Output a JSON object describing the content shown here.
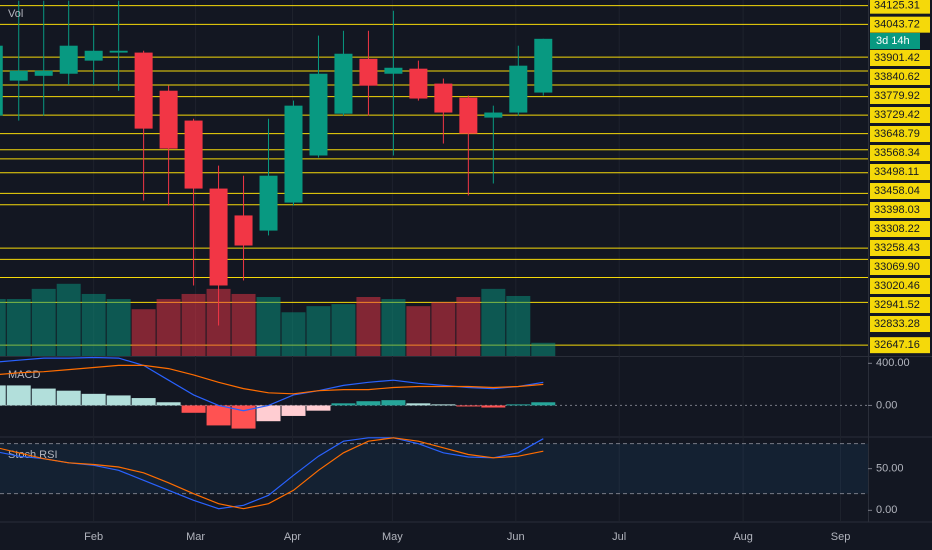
{
  "chart_data": [
    {
      "type": "candlestick",
      "x": [
        0,
        1,
        2,
        3,
        4,
        5,
        6,
        7,
        8,
        9,
        10,
        11,
        12,
        13,
        14,
        15,
        16,
        17,
        18,
        19,
        20,
        21,
        22
      ],
      "open": [
        33647,
        33799,
        33820,
        33829,
        33886,
        33921,
        33921,
        33755,
        33625,
        33329,
        33212,
        33146,
        33268,
        33473,
        33655,
        33894,
        33829,
        33851,
        33786,
        33725,
        33638,
        33660,
        33747
      ],
      "high": [
        33995,
        34147,
        34147,
        34147,
        34038,
        34147,
        33929,
        33777,
        33633,
        33429,
        33385,
        33633,
        33712,
        33995,
        34016,
        34016,
        34103,
        33886,
        33808,
        33734,
        33690,
        33951,
        33981
      ],
      "low": [
        33620,
        33625,
        33647,
        33780,
        33780,
        33755,
        33277,
        33255,
        32907,
        32733,
        32929,
        33125,
        33255,
        33464,
        33647,
        33647,
        33473,
        33712,
        33525,
        33299,
        33351,
        33647,
        33734
      ],
      "close": [
        33951,
        33842,
        33842,
        33951,
        33929,
        33929,
        33590,
        33503,
        33329,
        32907,
        33081,
        33385,
        33690,
        33829,
        33916,
        33777,
        33855,
        33721,
        33660,
        33568,
        33660,
        33864,
        33981
      ],
      "up_color": "#089981",
      "down_color": "#f23645",
      "xlim": [
        0.25,
        35
      ],
      "xticks": [
        {
          "value": 4,
          "label": "Feb"
        },
        {
          "value": 8.08,
          "label": "Mar"
        },
        {
          "value": 11.96,
          "label": "Apr"
        },
        {
          "value": 15.96,
          "label": "May"
        },
        {
          "value": 20.9,
          "label": "Jun"
        },
        {
          "value": 25.04,
          "label": "Jul"
        },
        {
          "value": 30,
          "label": "Aug"
        },
        {
          "value": 33.9,
          "label": "Sep"
        }
      ],
      "ylim": [
        32600,
        34150
      ],
      "levels": [
        34125.31,
        34043.72,
        33901.42,
        33840.62,
        33779.92,
        33729.42,
        33648.79,
        33568.34,
        33498.11,
        33458.04,
        33398.03,
        33308.22,
        33258.43,
        {
          "value": 33069.9,
          "label": "33069.90"
        },
        33020.46,
        32941.52,
        32833.28,
        32647.16
      ],
      "level_color": "#f5d90a",
      "countdown": "3d 14h"
    },
    {
      "type": "bar",
      "title": "Vol",
      "values": [
        56,
        56,
        66,
        71,
        61,
        56,
        46,
        56,
        61,
        66,
        61,
        58,
        43,
        49,
        51,
        58,
        56,
        49,
        53,
        58,
        66,
        59,
        13
      ],
      "ylim": [
        0,
        350
      ],
      "up_color": "rgba(8,153,129,0.5)",
      "down_color": "rgba(242,54,69,0.5)"
    },
    {
      "type": "macd",
      "title": "MACD",
      "histogram": {
        "values": [
          190,
          190,
          160,
          140,
          110,
          95,
          70,
          30,
          -70,
          -190,
          -220,
          -150,
          -100,
          -50,
          20,
          40,
          50,
          20,
          10,
          -10,
          -20,
          10,
          30
        ],
        "colors": [
          "#b2dfdb",
          "#b2dfdb",
          "#b2dfdb",
          "#b2dfdb",
          "#b2dfdb",
          "#b2dfdb",
          "#b2dfdb",
          "#b2dfdb",
          "#ff5252",
          "#ff5252",
          "#ff5252",
          "#ffcdd2",
          "#ffcdd2",
          "#ffcdd2",
          "#26a69a",
          "#26a69a",
          "#26a69a",
          "#b2dfdb",
          "#b2dfdb",
          "#ff5252",
          "#ff5252",
          "#26a69a",
          "#26a69a"
        ]
      },
      "series": [
        {
          "color": "#2962ff",
          "values": [
            410,
            430,
            450,
            450,
            455,
            450,
            380,
            240,
            100,
            0,
            -50,
            0,
            100,
            140,
            190,
            220,
            240,
            210,
            190,
            170,
            160,
            180,
            220
          ]
        },
        {
          "color": "#ff6d00",
          "values": [
            290,
            310,
            320,
            340,
            360,
            380,
            380,
            350,
            290,
            220,
            160,
            120,
            110,
            140,
            150,
            150,
            170,
            180,
            180,
            180,
            170,
            180,
            200
          ]
        }
      ],
      "ylim": [
        -300,
        460
      ],
      "yticks": [
        {
          "value": 0,
          "label": "0.00"
        },
        {
          "value": 400,
          "label": "400.00"
        }
      ]
    },
    {
      "type": "line",
      "title": "Stoch RSI",
      "series": [
        {
          "color": "#2962ff",
          "values": [
            71,
            65,
            62,
            57,
            54,
            48,
            36,
            24,
            12,
            2,
            6,
            18,
            42,
            65,
            83,
            87,
            87,
            80,
            69,
            64,
            63,
            69,
            86
          ]
        },
        {
          "color": "#ff6d00",
          "values": [
            76,
            69,
            62,
            57,
            55,
            52,
            45,
            33,
            20,
            8,
            2,
            8,
            24,
            48,
            69,
            83,
            87,
            83,
            75,
            67,
            63,
            65,
            71
          ]
        }
      ],
      "ylim": [
        -14,
        88
      ],
      "yticks": [
        {
          "value": 0,
          "label": "0.00"
        },
        {
          "value": 50,
          "label": "50.00"
        }
      ],
      "band": [
        20,
        80
      ]
    }
  ]
}
